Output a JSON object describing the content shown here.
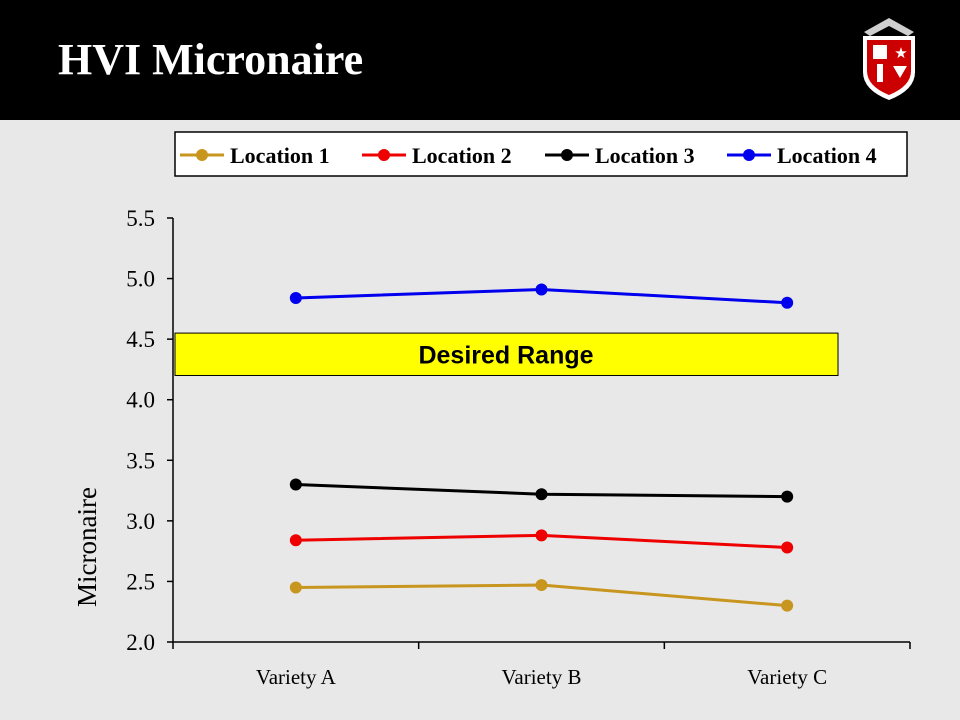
{
  "slide": {
    "title": "HVI Micronaire"
  },
  "logo": {
    "icon": "university-shield-logo",
    "colors": {
      "shield": "#cc0000",
      "trim": "#ffffff",
      "eagle": "#cfcfcf"
    }
  },
  "annotation": {
    "text": "Desired Range",
    "range": [
      4.2,
      4.55
    ],
    "color": "#ffff00"
  },
  "chart_data": {
    "type": "line",
    "title": "",
    "xlabel": "",
    "ylabel": "Micronaire",
    "categories": [
      "Variety A",
      "Variety B",
      "Variety C"
    ],
    "ylim": [
      2.0,
      5.5
    ],
    "yticks": [
      "2.0",
      "2.5",
      "3.0",
      "3.5",
      "4.0",
      "4.5",
      "5.0",
      "5.5"
    ],
    "ytick_values": [
      2.0,
      2.5,
      3.0,
      3.5,
      4.0,
      4.5,
      5.0,
      5.5
    ],
    "grid": false,
    "legend_position": "top",
    "series": [
      {
        "name": "Location 1",
        "color": "#c8961e",
        "values": [
          2.45,
          2.47,
          2.3
        ]
      },
      {
        "name": "Location 2",
        "color": "#ee0000",
        "values": [
          2.84,
          2.88,
          2.78
        ]
      },
      {
        "name": "Location 3",
        "color": "#000000",
        "values": [
          3.3,
          3.22,
          3.2
        ]
      },
      {
        "name": "Location 4",
        "color": "#0000ee",
        "values": [
          4.84,
          4.91,
          4.8
        ]
      }
    ]
  }
}
